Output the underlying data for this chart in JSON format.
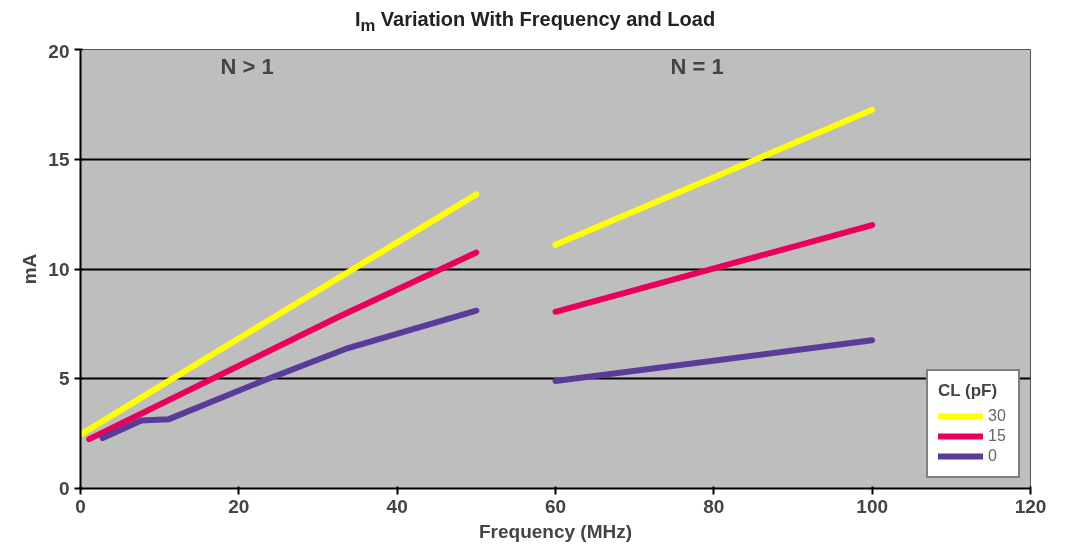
{
  "chart_data": {
    "type": "line",
    "title": "I$_{m}$ Variation With Frequency and Load",
    "xlabel": "Frequency (MHz)",
    "ylabel": "mA",
    "legend_title": "CL (pF)",
    "annotations": [
      "N > 1",
      "N = 1"
    ],
    "xlim": [
      0,
      120
    ],
    "xticks": [
      0,
      20,
      40,
      60,
      80,
      100,
      120
    ],
    "ylim": [
      0,
      20
    ],
    "yticks": [
      0,
      5,
      10,
      15,
      20
    ],
    "grid": "y",
    "legend": "bottom right",
    "line_style": "solid",
    "marker": "none",
    "series": [
      {
        "name": "30",
        "color": "#ffff00",
        "x": [
          0.2,
          50,
          55,
          60,
          100
        ],
        "values": [
          2.5,
          13.4,
          null,
          11.1,
          17.25
        ]
      },
      {
        "name": "15",
        "color": "#e8005a",
        "x": [
          1.1,
          32.5,
          50,
          55,
          60,
          100
        ],
        "values": [
          2.25,
          7.8,
          10.75,
          null,
          8.05,
          12.0
        ]
      },
      {
        "name": "0",
        "color": "#5b3b9a",
        "x": [
          2.8,
          7.7,
          11.1,
          23,
          33.8,
          50,
          55,
          60,
          100
        ],
        "values": [
          2.3,
          3.1,
          3.15,
          4.9,
          6.4,
          8.1,
          null,
          4.9,
          6.75
        ]
      }
    ]
  }
}
